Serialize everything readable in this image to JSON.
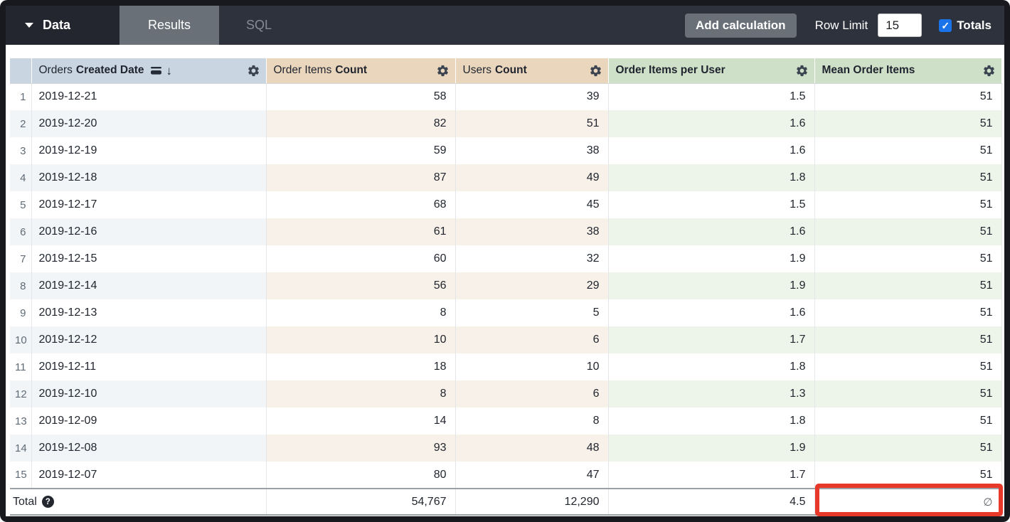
{
  "toolbar": {
    "data_label": "Data",
    "results_tab": "Results",
    "sql_tab": "SQL",
    "add_calculation": "Add calculation",
    "row_limit_label": "Row Limit",
    "row_limit_value": "15",
    "totals_label": "Totals",
    "totals_checked": true,
    "check_glyph": "✓"
  },
  "colors": {
    "dimension_header": "#c9d6e2",
    "measure_header": "#e9d6bd",
    "calculation_header": "#cfe0c9",
    "checkbox_accent": "#1a73e8",
    "annotation_red": "#e8382a"
  },
  "table": {
    "columns": [
      {
        "key": "row_index",
        "prefix": "",
        "bold": "",
        "type": "index"
      },
      {
        "key": "orders_created_date",
        "prefix": "Orders",
        "bold": "Created Date",
        "type": "dimension",
        "sorted": "desc"
      },
      {
        "key": "order_items_count",
        "prefix": "Order Items",
        "bold": "Count",
        "type": "measure"
      },
      {
        "key": "users_count",
        "prefix": "Users",
        "bold": "Count",
        "type": "measure"
      },
      {
        "key": "order_items_per_user",
        "prefix": "",
        "bold": "Order Items per User",
        "type": "calculation"
      },
      {
        "key": "mean_order_items",
        "prefix": "",
        "bold": "Mean Order Items",
        "type": "calculation"
      }
    ],
    "rows": [
      {
        "n": "1",
        "cells": [
          "2019-12-21",
          "58",
          "39",
          "1.5",
          "51"
        ]
      },
      {
        "n": "2",
        "cells": [
          "2019-12-20",
          "82",
          "51",
          "1.6",
          "51"
        ]
      },
      {
        "n": "3",
        "cells": [
          "2019-12-19",
          "59",
          "38",
          "1.6",
          "51"
        ]
      },
      {
        "n": "4",
        "cells": [
          "2019-12-18",
          "87",
          "49",
          "1.8",
          "51"
        ]
      },
      {
        "n": "5",
        "cells": [
          "2019-12-17",
          "68",
          "45",
          "1.5",
          "51"
        ]
      },
      {
        "n": "6",
        "cells": [
          "2019-12-16",
          "61",
          "38",
          "1.6",
          "51"
        ]
      },
      {
        "n": "7",
        "cells": [
          "2019-12-15",
          "60",
          "32",
          "1.9",
          "51"
        ]
      },
      {
        "n": "8",
        "cells": [
          "2019-12-14",
          "56",
          "29",
          "1.9",
          "51"
        ]
      },
      {
        "n": "9",
        "cells": [
          "2019-12-13",
          "8",
          "5",
          "1.6",
          "51"
        ]
      },
      {
        "n": "10",
        "cells": [
          "2019-12-12",
          "10",
          "6",
          "1.7",
          "51"
        ]
      },
      {
        "n": "11",
        "cells": [
          "2019-12-11",
          "18",
          "10",
          "1.8",
          "51"
        ]
      },
      {
        "n": "12",
        "cells": [
          "2019-12-10",
          "8",
          "6",
          "1.3",
          "51"
        ]
      },
      {
        "n": "13",
        "cells": [
          "2019-12-09",
          "14",
          "8",
          "1.8",
          "51"
        ]
      },
      {
        "n": "14",
        "cells": [
          "2019-12-08",
          "93",
          "48",
          "1.9",
          "51"
        ]
      },
      {
        "n": "15",
        "cells": [
          "2019-12-07",
          "80",
          "47",
          "1.7",
          "51"
        ]
      }
    ],
    "total": {
      "label": "Total",
      "order_items_count": "54,767",
      "users_count": "12,290",
      "order_items_per_user": "4.5",
      "mean_order_items": "∅"
    }
  }
}
